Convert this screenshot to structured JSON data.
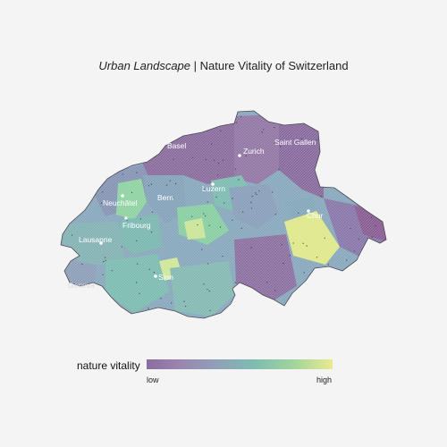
{
  "title": {
    "italic": "Urban Landscape",
    "rest": " | Nature Vitality of Switzerland"
  },
  "colors": {
    "low": "#8a6da0",
    "mid_low": "#8fa1b8",
    "mid": "#7fbcb1",
    "mid_high": "#9ed39d",
    "high": "#eaea8e",
    "border": "#4a4a5a",
    "background": "#f4f4f4"
  },
  "cities": [
    {
      "name": "Basel"
    },
    {
      "name": "Zurich"
    },
    {
      "name": "Saint Gallen"
    },
    {
      "name": "Neuchâtel"
    },
    {
      "name": "Bern"
    },
    {
      "name": "Luzern"
    },
    {
      "name": "Chur"
    },
    {
      "name": "Fribourg"
    },
    {
      "name": "Lausanne"
    },
    {
      "name": "Sion"
    },
    {
      "name": "Geneva"
    }
  ],
  "legend": {
    "label": "nature vitality",
    "low": "low",
    "high": "high"
  }
}
